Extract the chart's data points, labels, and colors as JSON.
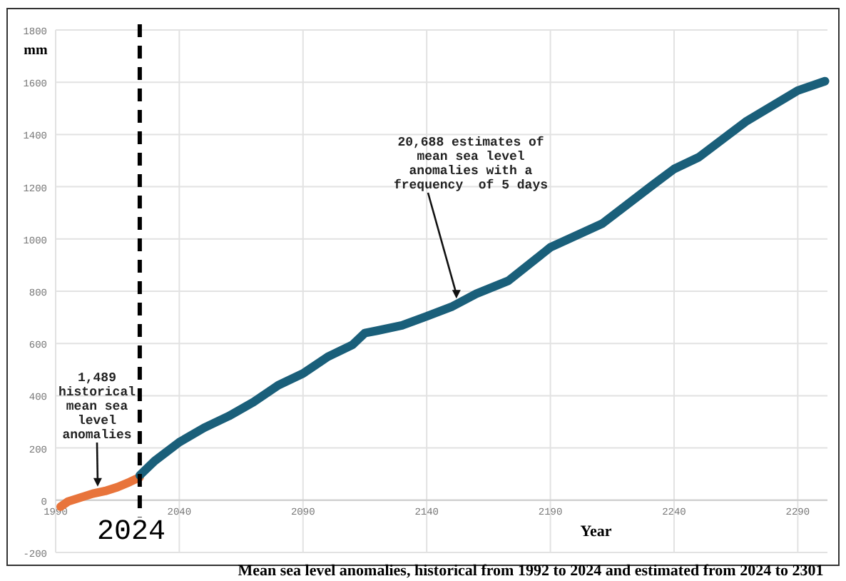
{
  "chart_data": {
    "type": "line",
    "title": "Mean sea level anomalies, historical from 1992 to 2024 and estimated from 2024 to 2301",
    "xlabel": "Year",
    "ylabel": "mm",
    "series": [
      {
        "color": "#e8743b",
        "x": [
          1992,
          1995,
          2000,
          2005,
          2010,
          2015,
          2020,
          2024
        ],
        "values": [
          -25,
          -5,
          10,
          25,
          35,
          50,
          70,
          88
        ]
      },
      {
        "color": "#1a5f7a",
        "x": [
          2024,
          2030,
          2040,
          2050,
          2060,
          2070,
          2080,
          2090,
          2100,
          2110,
          2115,
          2120,
          2130,
          2140,
          2150,
          2160,
          2173,
          2190,
          2211,
          2231,
          2240,
          2250,
          2269,
          2290,
          2301
        ],
        "values": [
          95,
          150,
          222,
          277,
          322,
          376,
          440,
          485,
          549,
          595,
          640,
          649,
          669,
          704,
          740,
          790,
          840,
          968,
          1059,
          1204,
          1268,
          1313,
          1449,
          1568,
          1604
        ]
      }
    ],
    "xlim": [
      1990,
      2302
    ],
    "xticks": [
      1990,
      2040,
      2090,
      2140,
      2190,
      2240,
      2290
    ],
    "ylim": [
      -200,
      1800
    ],
    "yticks": [
      -200,
      0,
      200,
      400,
      600,
      800,
      1000,
      1200,
      1400,
      1600,
      1800
    ],
    "grid": true,
    "line_style": "solid",
    "marker": "none",
    "ref_lines": [
      {
        "axis": "x",
        "value": 2024,
        "label": "2024",
        "color": "#000000",
        "line_style": "dashed"
      }
    ],
    "annotations": [
      {
        "text": "1,489\nhistorical\nmean sea\nlevel\nanomalies",
        "x": 2007,
        "y": 25
      },
      {
        "text": "20,688 estimates of\nmean sea level\nanomalies with a\nfrequency  of 5 days",
        "x": 2152,
        "y": 745
      }
    ]
  }
}
